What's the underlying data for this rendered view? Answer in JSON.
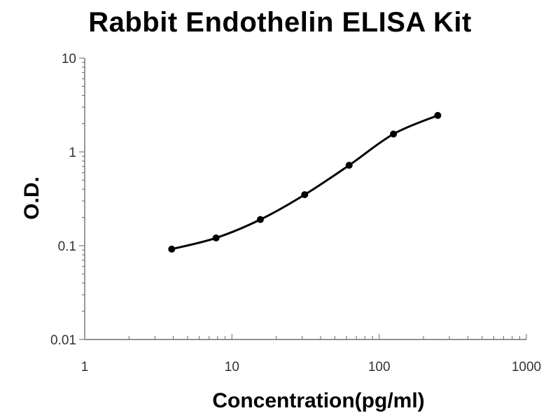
{
  "chart_data": {
    "type": "line",
    "title": "Rabbit Endothelin ELISA Kit",
    "xlabel": "Concentration(pg/ml)",
    "ylabel": "O.D.",
    "x_scale": "log",
    "y_scale": "log",
    "xlim": [
      1,
      1000
    ],
    "ylim": [
      0.01,
      10
    ],
    "x_ticks": [
      "1",
      "10",
      "100",
      "1000"
    ],
    "y_ticks": [
      "0.01",
      "0.1",
      "1",
      "10"
    ],
    "grid": false,
    "legend": "none",
    "series": [
      {
        "x": [
          3.9,
          7.8,
          15.6,
          31.2,
          62.5,
          125,
          250
        ],
        "y": [
          0.092,
          0.121,
          0.19,
          0.35,
          0.72,
          1.55,
          2.45
        ],
        "color": "#000000",
        "marker": "circle",
        "smooth": true
      }
    ]
  }
}
